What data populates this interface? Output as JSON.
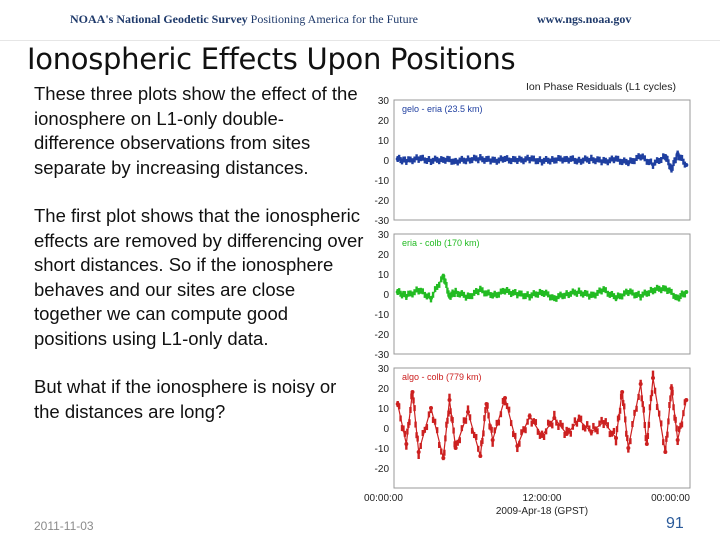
{
  "header": {
    "org_bold": "NOAA's National Geodetic Survey",
    "org_tagline": " Positioning America for the Future",
    "url": "www.ngs.noaa.gov"
  },
  "slide": {
    "title": "Ionospheric Effects Upon Positions",
    "paragraph_1": "These three plots show the effect of the ionosphere on L1-only double-difference observations from sites separate by increasing distances.",
    "paragraph_2": "The first plot shows that the ionospheric effects are removed by differencing over short distances. So if the ionosphere behaves and our sites are close together we can compute good positions using L1-only data.",
    "paragraph_3": "But what if the ionosphere is noisy or the distances are long?",
    "date": "2011-11-03",
    "page_number": "91"
  },
  "chart_data": [
    {
      "type": "scatter",
      "title": "Ion Phase Residuals (L1 cycles)",
      "legend": "gelo - eria (23.5 km)",
      "color": "#1f3fa0",
      "xlim": [
        0,
        24
      ],
      "ylim": [
        -30,
        30
      ],
      "yticks": [
        "30",
        "20",
        "10",
        "0",
        "-10",
        "-20",
        "-30"
      ],
      "series": [
        {
          "values": [
            [
              0.3,
              0.5
            ],
            [
              1,
              -0.5
            ],
            [
              2,
              0.8
            ],
            [
              3,
              -0.3
            ],
            [
              4,
              0.4
            ],
            [
              5,
              -0.6
            ],
            [
              6,
              0.2
            ],
            [
              7,
              0.7
            ],
            [
              8,
              -0.4
            ],
            [
              9,
              0.3
            ],
            [
              10,
              -0.2
            ],
            [
              11,
              0.5
            ],
            [
              12,
              -0.5
            ],
            [
              13,
              0.2
            ],
            [
              14,
              0.6
            ],
            [
              15,
              -0.3
            ],
            [
              16,
              0.4
            ],
            [
              17,
              -0.7
            ],
            [
              18,
              0.3
            ],
            [
              19,
              -1.5
            ],
            [
              20,
              1.8
            ],
            [
              21,
              -2.2
            ],
            [
              22,
              2.0
            ],
            [
              22.5,
              -4.5
            ],
            [
              23,
              3.0
            ],
            [
              23.7,
              -2.5
            ]
          ]
        }
      ]
    },
    {
      "type": "scatter",
      "legend": "eria - colb (170 km)",
      "color": "#22bb22",
      "xlim": [
        0,
        24
      ],
      "ylim": [
        -30,
        30
      ],
      "yticks": [
        "30",
        "20",
        "10",
        "0",
        "-10",
        "-20",
        "-30"
      ],
      "series": [
        {
          "values": [
            [
              0.3,
              1
            ],
            [
              1,
              -1
            ],
            [
              2,
              2
            ],
            [
              3,
              -2
            ],
            [
              4,
              9
            ],
            [
              4.5,
              -1
            ],
            [
              5,
              1
            ],
            [
              6,
              -1.5
            ],
            [
              7,
              2
            ],
            [
              8,
              -1
            ],
            [
              9,
              1.5
            ],
            [
              10,
              0
            ],
            [
              11,
              -1
            ],
            [
              12,
              1
            ],
            [
              13,
              -2
            ],
            [
              14,
              0
            ],
            [
              15,
              1
            ],
            [
              16,
              -1
            ],
            [
              17,
              2
            ],
            [
              18,
              -2
            ],
            [
              19,
              1
            ],
            [
              20,
              -1
            ],
            [
              21,
              2
            ],
            [
              22,
              3
            ],
            [
              23,
              -2
            ],
            [
              23.7,
              1
            ]
          ]
        }
      ]
    },
    {
      "type": "scatter",
      "legend": "algo - colb (779 km)",
      "color": "#cc2020",
      "xlim": [
        0,
        24
      ],
      "ylim": [
        -30,
        30
      ],
      "yticks": [
        "30",
        "20",
        "10",
        "0",
        "-10",
        "-20"
      ],
      "xticks": [
        "00:00:00",
        "12:00:00",
        "00:00:00"
      ],
      "xlabel": "2009-Apr-18 (GPST)",
      "series": [
        {
          "values": [
            [
              0.3,
              12
            ],
            [
              1,
              -8
            ],
            [
              1.5,
              18
            ],
            [
              2,
              -12
            ],
            [
              3,
              10
            ],
            [
              4,
              -15
            ],
            [
              4.5,
              14
            ],
            [
              5,
              -10
            ],
            [
              6,
              8
            ],
            [
              7,
              -14
            ],
            [
              7.5,
              12
            ],
            [
              8,
              -6
            ],
            [
              9,
              15
            ],
            [
              10,
              -9
            ],
            [
              11,
              6
            ],
            [
              12,
              -4
            ],
            [
              13,
              5
            ],
            [
              14,
              -3
            ],
            [
              15,
              4
            ],
            [
              16,
              -2
            ],
            [
              17,
              3
            ],
            [
              18,
              -5
            ],
            [
              18.5,
              18
            ],
            [
              19,
              -10
            ],
            [
              20,
              22
            ],
            [
              20.5,
              -8
            ],
            [
              21,
              25
            ],
            [
              22,
              -12
            ],
            [
              22.5,
              20
            ],
            [
              23,
              -6
            ],
            [
              23.7,
              14
            ]
          ]
        }
      ]
    }
  ]
}
